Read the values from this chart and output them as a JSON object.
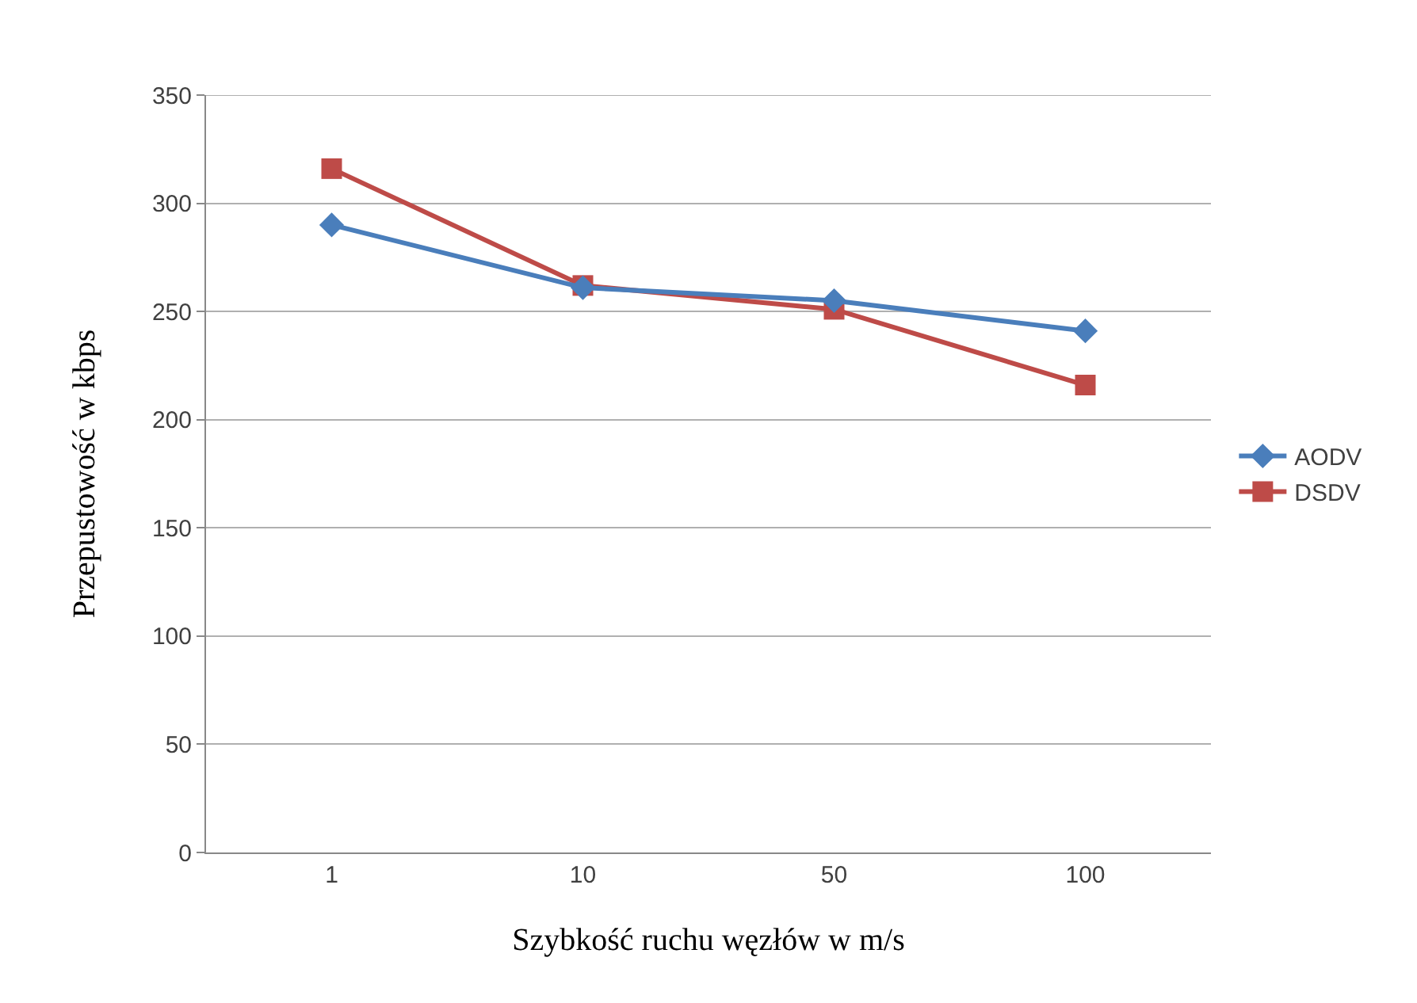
{
  "chart_data": {
    "type": "line",
    "xlabel": "Szybkość ruchu węzłów w m/s",
    "ylabel": "Przepustowość w kbps",
    "categories": [
      "1",
      "10",
      "50",
      "100"
    ],
    "series": [
      {
        "name": "AODV",
        "color": "#4a7ebb",
        "marker": "diamond",
        "values": [
          290,
          261,
          255,
          241
        ]
      },
      {
        "name": "DSDV",
        "color": "#be4b48",
        "marker": "square",
        "values": [
          316,
          262,
          251,
          216
        ]
      }
    ],
    "ylim": [
      0,
      350
    ],
    "yticks": [
      0,
      50,
      100,
      150,
      200,
      250,
      300,
      350
    ],
    "grid": "y",
    "legend": "right"
  }
}
